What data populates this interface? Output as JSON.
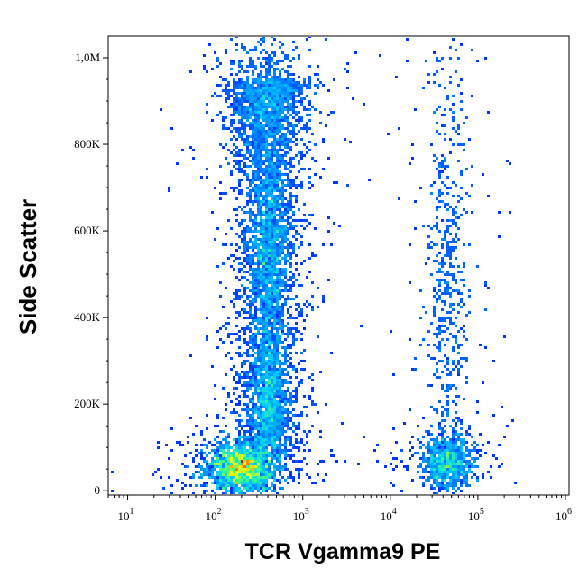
{
  "chart_data": {
    "type": "scatter",
    "subtype": "flow cytometry density dot plot",
    "xlabel": "TCR Vgamma9 PE",
    "ylabel": "Side Scatter",
    "x_scale": "log",
    "xlim": [
      6,
      1100000
    ],
    "ylim": [
      -10000,
      1050000
    ],
    "x_ticks": [
      {
        "value": 10,
        "base": "10",
        "exp": "1"
      },
      {
        "value": 100,
        "base": "10",
        "exp": "2"
      },
      {
        "value": 1000,
        "base": "10",
        "exp": "3"
      },
      {
        "value": 10000,
        "base": "10",
        "exp": "4"
      },
      {
        "value": 100000,
        "base": "10",
        "exp": "5"
      },
      {
        "value": 1000000,
        "base": "10",
        "exp": "6"
      }
    ],
    "y_ticks": [
      {
        "value": 0,
        "label": "0"
      },
      {
        "value": 200000,
        "label": "200K"
      },
      {
        "value": 400000,
        "label": "400K"
      },
      {
        "value": 600000,
        "label": "600K"
      },
      {
        "value": 800000,
        "label": "800K"
      },
      {
        "value": 1000000,
        "label": "1,0M"
      }
    ],
    "populations": [
      {
        "name": "",
        "x_center": 200,
        "y_center": 55000,
        "peak_density": "high"
      },
      {
        "name": "",
        "x_center": 400,
        "y_center": 200000,
        "peak_density": "medium"
      },
      {
        "name": "",
        "x_center": 400,
        "y_center": 550000,
        "peak_density": "medium"
      },
      {
        "name": "",
        "x_center": 400,
        "y_center": 900000,
        "peak_density": "low"
      },
      {
        "name": "",
        "x_center": 45000,
        "y_center": 65000,
        "peak_density": "medium"
      },
      {
        "name": "",
        "x_center": 45000,
        "y_center": 500000,
        "peak_density": "low"
      }
    ],
    "colormap": [
      "#0000ff",
      "#0080ff",
      "#00d0ff",
      "#40ff80",
      "#ffff00",
      "#ff8000",
      "#ff0000"
    ],
    "grid": false,
    "legend": "none"
  }
}
